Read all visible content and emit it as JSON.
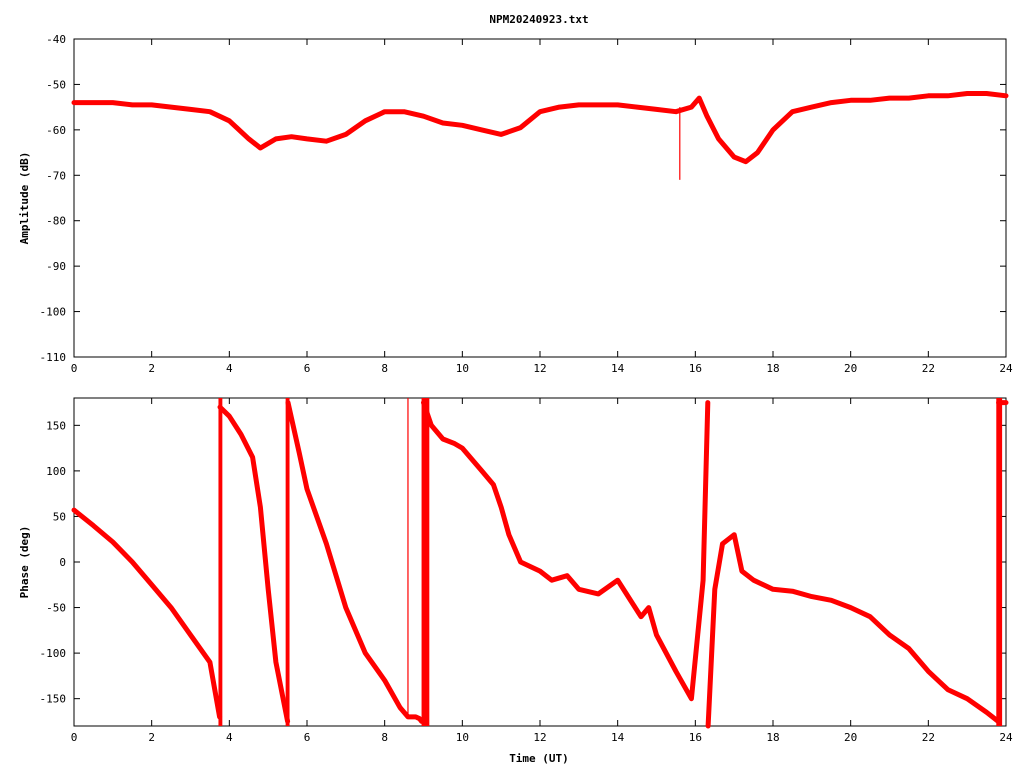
{
  "chart_data": [
    {
      "type": "line",
      "title": "NPM20240923.txt",
      "xlabel": "",
      "ylabel": "Amplitude (dB)",
      "xlim": [
        0,
        24
      ],
      "ylim": [
        -110,
        -40
      ],
      "x_ticks": [
        "0",
        "2",
        "4",
        "6",
        "8",
        "10",
        "12",
        "14",
        "16",
        "18",
        "20",
        "22",
        "24"
      ],
      "y_ticks": [
        "-110",
        "-100",
        "-90",
        "-80",
        "-70",
        "-60",
        "-50",
        "-40"
      ],
      "grid": false,
      "color": "#ff0000",
      "series": [
        {
          "x": [
            0,
            0.5,
            1,
            1.5,
            2,
            2.5,
            3,
            3.5,
            4,
            4.5,
            4.8,
            5.2,
            5.6,
            6,
            6.5,
            7,
            7.5,
            8,
            8.5,
            9,
            9.5,
            10,
            10.5,
            11,
            11.5,
            12,
            12.5,
            13,
            13.5,
            14,
            14.5,
            15,
            15.5,
            15.9,
            16.1,
            16.3,
            16.6,
            17,
            17.3,
            17.6,
            18,
            18.5,
            19,
            19.5,
            20,
            20.5,
            21,
            21.5,
            22,
            22.5,
            23,
            23.5,
            24
          ],
          "values": [
            -54,
            -54,
            -54,
            -54.5,
            -54.5,
            -55,
            -55.5,
            -56,
            -58,
            -62,
            -64,
            -62,
            -61.5,
            -62,
            -62.5,
            -61,
            -58,
            -56,
            -56,
            -57,
            -58.5,
            -59,
            -60,
            -61,
            -59.5,
            -56,
            -55,
            -54.5,
            -54.5,
            -54.5,
            -55,
            -55.5,
            -56,
            -55,
            -53,
            -57,
            -62,
            -66,
            -67,
            -65,
            -60,
            -56,
            -55,
            -54,
            -53.5,
            -53.5,
            -53,
            -53,
            -52.5,
            -52.5,
            -52,
            -52,
            -52.5
          ]
        }
      ],
      "spike": {
        "x": 15.6,
        "from": -55,
        "to": -71
      }
    },
    {
      "type": "line",
      "title": "",
      "xlabel": "Time (UT)",
      "ylabel": "Phase (deg)",
      "xlim": [
        0,
        24
      ],
      "ylim": [
        -180,
        180
      ],
      "x_ticks": [
        "0",
        "2",
        "4",
        "6",
        "8",
        "10",
        "12",
        "14",
        "16",
        "18",
        "20",
        "22",
        "24"
      ],
      "y_ticks": [
        "-150",
        "-100",
        "-50",
        "0",
        "50",
        "100",
        "150"
      ],
      "grid": false,
      "color": "#ff0000",
      "series": [
        {
          "x": [
            0,
            0.5,
            1,
            1.5,
            2,
            2.5,
            3,
            3.5,
            3.75,
            3.76,
            4,
            4.3,
            4.6,
            4.8,
            5,
            5.2,
            5.5,
            5.51,
            5.8,
            6,
            6.5,
            7,
            7.5,
            8,
            8.4,
            8.6,
            8.8,
            8.9,
            8.95,
            9.0,
            9.2,
            9.5,
            9.8,
            10,
            10.5,
            10.8,
            11,
            11.2,
            11.5,
            12,
            12.3,
            12.7,
            13,
            13.5,
            14,
            14.3,
            14.6,
            14.8,
            15,
            15.5,
            15.9,
            16.2,
            16.32,
            16.33,
            16.5,
            16.7,
            17,
            17.2,
            17.5,
            18,
            18.5,
            19,
            19.5,
            20,
            20.5,
            21,
            21.5,
            22,
            22.5,
            23,
            23.5,
            23.8,
            23.81,
            24
          ],
          "values": [
            57,
            40,
            22,
            0,
            -25,
            -50,
            -80,
            -110,
            -170,
            170,
            160,
            140,
            115,
            60,
            -30,
            -110,
            -175,
            175,
            120,
            80,
            20,
            -50,
            -100,
            -130,
            -160,
            -170,
            -170,
            -172,
            -175,
            175,
            150,
            135,
            130,
            125,
            100,
            85,
            60,
            30,
            0,
            -10,
            -20,
            -15,
            -30,
            -35,
            -20,
            -40,
            -60,
            -50,
            -80,
            -120,
            -150,
            -20,
            175,
            -180,
            -30,
            20,
            30,
            -10,
            -20,
            -30,
            -32,
            -38,
            -42,
            -50,
            -60,
            -80,
            -95,
            -120,
            -140,
            -150,
            -165,
            -175,
            175,
            175
          ]
        }
      ],
      "dense_bands": [
        {
          "x": 3.72,
          "to_x": 3.82
        },
        {
          "x": 5.45,
          "to_x": 5.55
        },
        {
          "x": 8.95,
          "to_x": 9.15
        },
        {
          "x": 23.75,
          "to_x": 23.9
        }
      ],
      "spike": {
        "x": 8.6,
        "from": -172,
        "to": 180
      }
    }
  ]
}
